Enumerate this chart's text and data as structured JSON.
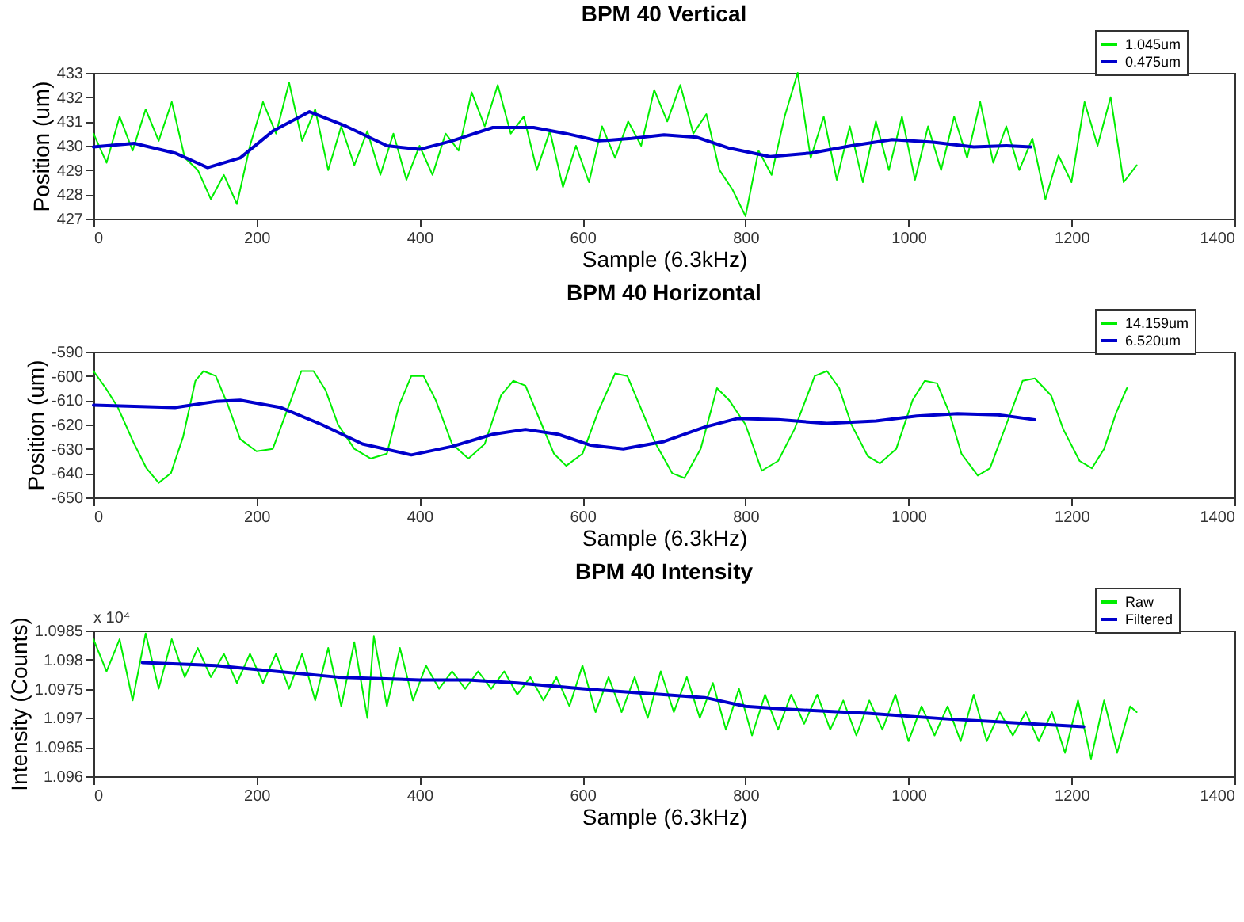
{
  "chart_data": [
    {
      "type": "line",
      "title": "BPM 40 Vertical",
      "xlabel": "Sample (6.3kHz)",
      "ylabel": "Position (um)",
      "xlim": [
        0,
        1400
      ],
      "xticks": [
        0,
        200,
        400,
        600,
        800,
        1000,
        1200,
        1400
      ],
      "ylim": [
        427,
        433
      ],
      "yticks": [
        427,
        428,
        429,
        430,
        431,
        432,
        433
      ],
      "legend": "top right",
      "marker": "none",
      "line_style": "solid",
      "series": [
        {
          "name": "1.045um",
          "color": "#00ee00",
          "x": [
            0,
            16,
            32,
            48,
            64,
            80,
            96,
            112,
            128,
            144,
            160,
            176,
            192,
            208,
            224,
            240,
            256,
            272,
            288,
            304,
            320,
            336,
            352,
            368,
            384,
            400,
            416,
            432,
            448,
            464,
            480,
            496,
            512,
            528,
            544,
            560,
            576,
            592,
            608,
            624,
            640,
            656,
            672,
            688,
            704,
            720,
            736,
            752,
            768,
            784,
            800,
            816,
            832,
            848,
            864,
            880,
            896,
            912,
            928,
            944,
            960,
            976,
            992,
            1008,
            1024,
            1040,
            1056,
            1072,
            1088,
            1104,
            1120,
            1136,
            1152,
            1168,
            1184,
            1200,
            1216,
            1232,
            1248,
            1264,
            1280
          ],
          "values": [
            430.5,
            429.3,
            431.2,
            429.8,
            431.5,
            430.2,
            431.8,
            429.5,
            429.0,
            427.8,
            428.8,
            427.6,
            430.0,
            431.8,
            430.5,
            432.6,
            430.2,
            431.5,
            429.0,
            430.8,
            429.2,
            430.6,
            428.8,
            430.5,
            428.6,
            430.0,
            428.8,
            430.5,
            429.8,
            432.2,
            430.8,
            432.5,
            430.5,
            431.2,
            429.0,
            430.6,
            428.3,
            430.0,
            428.5,
            430.8,
            429.5,
            431.0,
            430.0,
            432.3,
            431.0,
            432.5,
            430.5,
            431.3,
            429.0,
            428.2,
            427.1,
            429.8,
            428.8,
            431.2,
            433.0,
            429.5,
            431.2,
            428.6,
            430.8,
            428.5,
            431.0,
            429.0,
            431.2,
            428.6,
            430.8,
            429.0,
            431.2,
            429.5,
            431.8,
            429.3,
            430.8,
            429.0,
            430.3,
            427.8,
            429.6,
            428.5,
            431.8,
            430.0,
            432.0,
            428.5,
            429.2
          ]
        },
        {
          "name": "0.475um",
          "color": "#0000cc",
          "x": [
            0,
            50,
            100,
            140,
            180,
            220,
            265,
            310,
            360,
            400,
            440,
            490,
            540,
            580,
            620,
            660,
            700,
            740,
            780,
            830,
            880,
            930,
            980,
            1030,
            1080,
            1120,
            1150
          ],
          "values": [
            429.95,
            430.1,
            429.7,
            429.1,
            429.5,
            430.6,
            431.4,
            430.8,
            430.0,
            429.85,
            430.2,
            430.75,
            430.75,
            430.5,
            430.2,
            430.3,
            430.45,
            430.35,
            429.9,
            429.55,
            429.7,
            430.0,
            430.25,
            430.15,
            429.95,
            430.0,
            429.95
          ]
        }
      ]
    },
    {
      "type": "line",
      "title": "BPM 40 Horizontal",
      "xlabel": "Sample (6.3kHz)",
      "ylabel": "Position (um)",
      "xlim": [
        0,
        1400
      ],
      "xticks": [
        0,
        200,
        400,
        600,
        800,
        1000,
        1200,
        1400
      ],
      "ylim": [
        -650,
        -590
      ],
      "yticks": [
        -650,
        -640,
        -630,
        -620,
        -610,
        -600,
        -590
      ],
      "legend": "top right",
      "marker": "none",
      "line_style": "solid",
      "series": [
        {
          "name": "14.159um",
          "color": "#00ee00",
          "x": [
            0,
            15,
            30,
            50,
            65,
            80,
            95,
            110,
            125,
            135,
            150,
            165,
            180,
            200,
            220,
            240,
            255,
            270,
            285,
            300,
            320,
            340,
            360,
            375,
            390,
            405,
            420,
            440,
            460,
            480,
            500,
            515,
            530,
            550,
            565,
            580,
            600,
            620,
            640,
            655,
            670,
            690,
            710,
            725,
            745,
            765,
            780,
            800,
            820,
            840,
            860,
            885,
            900,
            915,
            930,
            950,
            965,
            985,
            1005,
            1020,
            1035,
            1050,
            1065,
            1085,
            1100,
            1120,
            1140,
            1155,
            1175,
            1190,
            1210,
            1225,
            1240,
            1255,
            1268
          ],
          "values": [
            -598,
            -605,
            -613,
            -628,
            -638,
            -644,
            -640,
            -625,
            -602,
            -598,
            -600,
            -612,
            -626,
            -631,
            -630,
            -612,
            -598,
            -598,
            -606,
            -620,
            -630,
            -634,
            -632,
            -612,
            -600,
            -600,
            -610,
            -628,
            -634,
            -628,
            -608,
            -602,
            -604,
            -620,
            -632,
            -637,
            -632,
            -614,
            -599,
            -600,
            -612,
            -628,
            -640,
            -642,
            -630,
            -605,
            -610,
            -620,
            -639,
            -635,
            -622,
            -600,
            -598,
            -605,
            -620,
            -633,
            -636,
            -630,
            -610,
            -602,
            -603,
            -615,
            -632,
            -641,
            -638,
            -620,
            -602,
            -601,
            -608,
            -622,
            -635,
            -638,
            -630,
            -615,
            -605
          ]
        },
        {
          "name": "6.520um",
          "color": "#0000cc",
          "x": [
            0,
            50,
            100,
            150,
            180,
            230,
            280,
            330,
            390,
            440,
            490,
            530,
            570,
            610,
            650,
            700,
            750,
            790,
            840,
            900,
            960,
            1010,
            1060,
            1110,
            1155
          ],
          "values": [
            -612,
            -612.5,
            -613,
            -610.5,
            -610,
            -613,
            -620,
            -628,
            -632.5,
            -629,
            -624,
            -622,
            -624,
            -628.5,
            -630,
            -627,
            -621,
            -617.5,
            -618,
            -619.5,
            -618.5,
            -616.5,
            -615.5,
            -616,
            -618
          ]
        }
      ]
    },
    {
      "type": "line",
      "title": "BPM 40 Intensity",
      "xlabel": "Sample (6.3kHz)",
      "ylabel": "Intensity (Counts)",
      "annotations": [
        "x 10⁴"
      ],
      "xlim": [
        0,
        1400
      ],
      "xticks": [
        0,
        200,
        400,
        600,
        800,
        1000,
        1200,
        1400
      ],
      "ylim": [
        1.096,
        1.0985
      ],
      "yticks": [
        1.096,
        1.0965,
        1.097,
        1.0975,
        1.098,
        1.0985
      ],
      "legend": "top right",
      "marker": "none",
      "line_style": "solid",
      "series": [
        {
          "name": "Raw",
          "color": "#00ee00",
          "x": [
            0,
            16,
            32,
            48,
            64,
            80,
            96,
            112,
            128,
            144,
            160,
            176,
            192,
            208,
            224,
            240,
            256,
            272,
            288,
            304,
            320,
            336,
            344,
            360,
            376,
            392,
            408,
            424,
            440,
            456,
            472,
            488,
            504,
            520,
            536,
            552,
            568,
            584,
            600,
            616,
            632,
            648,
            664,
            680,
            696,
            712,
            728,
            744,
            760,
            776,
            792,
            808,
            824,
            840,
            856,
            872,
            888,
            904,
            920,
            936,
            952,
            968,
            984,
            1000,
            1016,
            1032,
            1048,
            1064,
            1080,
            1096,
            1112,
            1128,
            1144,
            1160,
            1176,
            1192,
            1208,
            1224,
            1240,
            1256,
            1272,
            1280
          ],
          "values": [
            1.09835,
            1.0978,
            1.09835,
            1.0973,
            1.09845,
            1.0975,
            1.09835,
            1.0977,
            1.0982,
            1.0977,
            1.0981,
            1.0976,
            1.0981,
            1.0976,
            1.0981,
            1.0975,
            1.0981,
            1.0973,
            1.0982,
            1.0972,
            1.0983,
            1.097,
            1.0984,
            1.0972,
            1.0982,
            1.0973,
            1.0979,
            1.0975,
            1.0978,
            1.0975,
            1.0978,
            1.0975,
            1.0978,
            1.0974,
            1.0977,
            1.0973,
            1.0977,
            1.0972,
            1.0979,
            1.0971,
            1.0977,
            1.0971,
            1.0977,
            1.097,
            1.0978,
            1.0971,
            1.0977,
            1.097,
            1.0976,
            1.0968,
            1.0975,
            1.0967,
            1.0974,
            1.0968,
            1.0974,
            1.0969,
            1.0974,
            1.0968,
            1.0973,
            1.0967,
            1.0973,
            1.0968,
            1.0974,
            1.0966,
            1.0972,
            1.0967,
            1.0972,
            1.0966,
            1.0974,
            1.0966,
            1.0971,
            1.0967,
            1.0971,
            1.0966,
            1.0971,
            1.0964,
            1.0973,
            1.0963,
            1.0973,
            1.0964,
            1.0972,
            1.0971
          ]
        },
        {
          "name": "Filtered",
          "color": "#0000cc",
          "x": [
            60,
            150,
            200,
            300,
            400,
            460,
            520,
            600,
            700,
            750,
            800,
            850,
            950,
            1050,
            1150,
            1215
          ],
          "values": [
            1.09795,
            1.0979,
            1.09783,
            1.0977,
            1.09765,
            1.09765,
            1.0976,
            1.0975,
            1.0974,
            1.09735,
            1.0972,
            1.09715,
            1.09708,
            1.09698,
            1.0969,
            1.09685
          ]
        }
      ]
    }
  ]
}
